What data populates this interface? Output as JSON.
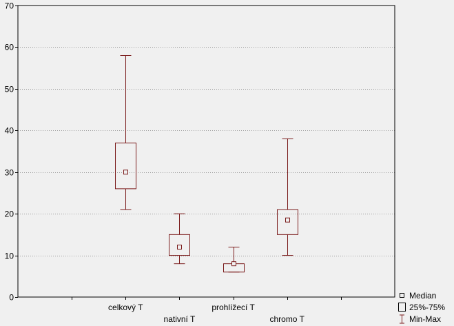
{
  "chart_data": {
    "type": "boxplot",
    "title": "",
    "xlabel": "",
    "ylabel": "",
    "ylim": [
      0,
      70
    ],
    "yticks": [
      0,
      10,
      20,
      30,
      40,
      50,
      60,
      70
    ],
    "grid": "horizontal dotted",
    "categories": [
      "celkový T",
      "nativní T",
      "prohlížecí T",
      "chromo T"
    ],
    "boxes": [
      {
        "category": "celkový T",
        "min": 21,
        "q1": 26,
        "median": 30,
        "q3": 37,
        "max": 58
      },
      {
        "category": "nativní T",
        "min": 8,
        "q1": 10,
        "median": 12,
        "q3": 15,
        "max": 20
      },
      {
        "category": "prohlížecí T",
        "min": 6,
        "q1": 6,
        "median": 8,
        "q3": 8,
        "max": 12
      },
      {
        "category": "chromo T",
        "min": 10,
        "q1": 15,
        "median": 18.5,
        "q3": 21,
        "max": 38
      }
    ],
    "legend": {
      "placement": "bottom-right",
      "items": [
        {
          "symbol": "median-marker",
          "label": "Median"
        },
        {
          "symbol": "box",
          "label": "25%-75%"
        },
        {
          "symbol": "whisker",
          "label": "Min-Max"
        }
      ]
    },
    "colors": {
      "box": "#7a1a1a",
      "background": "#f0f0f0",
      "grid": "#9a9a9a"
    }
  }
}
